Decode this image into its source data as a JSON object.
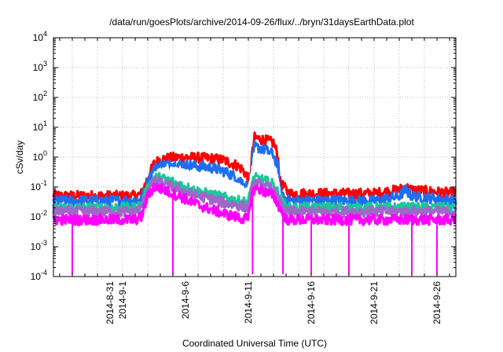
{
  "chart_data": {
    "type": "line",
    "title": "/data/run/goesPlots/archive/2014-09-26/flux/../bryn/31daysEarthData.plot",
    "xlabel": "Coordinated Universal Time (UTC)",
    "ylabel": "cSv/day",
    "yscale": "log",
    "ylim": [
      0.0001,
      10000
    ],
    "xlim": [
      "2014-08-26T12:00",
      "2014-09-27T12:00"
    ],
    "grid": true,
    "y_ticks": [
      {
        "value": 0.0001,
        "base": "10",
        "exp": "-4"
      },
      {
        "value": 0.001,
        "base": "10",
        "exp": "-3"
      },
      {
        "value": 0.01,
        "base": "10",
        "exp": "-2"
      },
      {
        "value": 0.1,
        "base": "10",
        "exp": "-1"
      },
      {
        "value": 1,
        "base": "10",
        "exp": "0"
      },
      {
        "value": 10,
        "base": "10",
        "exp": "1"
      },
      {
        "value": 100,
        "base": "10",
        "exp": "2"
      },
      {
        "value": 1000,
        "base": "10",
        "exp": "3"
      },
      {
        "value": 10000,
        "base": "10",
        "exp": "4"
      }
    ],
    "x_ticks": [
      {
        "date": "2014-08-31",
        "label": "2014-8-31"
      },
      {
        "date": "2014-09-01",
        "label": "2014-9-1"
      },
      {
        "date": "2014-09-06",
        "label": "2014-9-6"
      },
      {
        "date": "2014-09-11",
        "label": "2014-9-11"
      },
      {
        "date": "2014-09-16",
        "label": "2014-9-16"
      },
      {
        "date": "2014-09-21",
        "label": "2014-9-21"
      },
      {
        "date": "2014-09-26",
        "label": "2014-9-26"
      }
    ],
    "x_tick_marks": [
      "2014-08-27",
      "2014-08-28",
      "2014-08-29",
      "2014-08-30",
      "2014-08-31",
      "2014-09-01",
      "2014-09-02",
      "2014-09-03",
      "2014-09-04",
      "2014-09-05",
      "2014-09-06",
      "2014-09-07",
      "2014-09-08",
      "2014-09-09",
      "2014-09-10",
      "2014-09-11",
      "2014-09-12",
      "2014-09-13",
      "2014-09-14",
      "2014-09-15",
      "2014-09-16",
      "2014-09-17",
      "2014-09-18",
      "2014-09-19",
      "2014-09-20",
      "2014-09-21",
      "2014-09-22",
      "2014-09-23",
      "2014-09-24",
      "2014-09-25",
      "2014-09-26",
      "2014-09-27"
    ],
    "x_grid": [
      "2014-08-28",
      "2014-08-30",
      "2014-09-01",
      "2014-09-03",
      "2014-09-05",
      "2014-09-07",
      "2014-09-09",
      "2014-09-11",
      "2014-09-13",
      "2014-09-15",
      "2014-09-17",
      "2014-09-19",
      "2014-09-21",
      "2014-09-23",
      "2014-09-25",
      "2014-09-27"
    ],
    "series": [
      {
        "color": "#ff0000",
        "x": [
          "2014-08-26T12:00",
          "2014-08-29",
          "2014-09-02",
          "2014-09-02T12:00",
          "2014-09-03",
          "2014-09-03T12:00",
          "2014-09-04",
          "2014-09-05",
          "2014-09-06",
          "2014-09-07",
          "2014-09-08",
          "2014-09-09",
          "2014-09-10",
          "2014-09-10T12:00",
          "2014-09-11",
          "2014-09-11T04:00",
          "2014-09-11T06:00",
          "2014-09-11T12:00",
          "2014-09-12",
          "2014-09-12T12:00",
          "2014-09-13",
          "2014-09-13T08:00",
          "2014-09-13T12:00",
          "2014-09-14",
          "2014-09-14T06:00",
          "2014-09-15",
          "2014-09-18",
          "2014-09-21",
          "2014-09-22",
          "2014-09-23",
          "2014-09-23T12:00",
          "2014-09-24",
          "2014-09-27T12:00"
        ],
        "y": [
          0.05,
          0.05,
          0.05,
          0.06,
          0.2,
          0.6,
          0.85,
          0.95,
          1.0,
          0.95,
          0.9,
          0.8,
          0.55,
          0.4,
          0.2,
          0.12,
          0.8,
          4.5,
          4.0,
          3.5,
          3.0,
          1.2,
          0.15,
          0.08,
          0.06,
          0.06,
          0.06,
          0.06,
          0.07,
          0.08,
          0.1,
          0.08,
          0.06
        ]
      },
      {
        "color": "#1e6ff0",
        "x": [
          "2014-08-26T12:00",
          "2014-08-29",
          "2014-09-02",
          "2014-09-02T12:00",
          "2014-09-03",
          "2014-09-03T12:00",
          "2014-09-04",
          "2014-09-05",
          "2014-09-06",
          "2014-09-07",
          "2014-09-08",
          "2014-09-09",
          "2014-09-10",
          "2014-09-10T12:00",
          "2014-09-11",
          "2014-09-11T04:00",
          "2014-09-11T06:00",
          "2014-09-11T12:00",
          "2014-09-12",
          "2014-09-12T12:00",
          "2014-09-13",
          "2014-09-13T08:00",
          "2014-09-13T12:00",
          "2014-09-14",
          "2014-09-14T06:00",
          "2014-09-15",
          "2014-09-18",
          "2014-09-21",
          "2014-09-22",
          "2014-09-23",
          "2014-09-23T12:00",
          "2014-09-24",
          "2014-09-27T12:00"
        ],
        "y": [
          0.035,
          0.035,
          0.035,
          0.04,
          0.15,
          0.4,
          0.55,
          0.6,
          0.55,
          0.5,
          0.45,
          0.35,
          0.22,
          0.15,
          0.1,
          0.08,
          0.4,
          2.2,
          2.0,
          1.6,
          1.2,
          0.5,
          0.08,
          0.04,
          0.035,
          0.035,
          0.035,
          0.035,
          0.04,
          0.05,
          0.08,
          0.05,
          0.035
        ]
      },
      {
        "color": "#ffffff",
        "x": [
          "2014-09-03T12:00",
          "2014-09-04",
          "2014-09-05",
          "2014-09-06",
          "2014-09-07",
          "2014-09-08",
          "2014-09-09",
          "2014-09-10",
          "2014-09-10T12:00",
          "2014-09-11",
          "2014-09-11T12:00",
          "2014-09-12",
          "2014-09-13",
          "2014-09-13T08:00",
          "2014-09-13T12:00"
        ],
        "y": [
          0.2,
          0.3,
          0.3,
          0.25,
          0.2,
          0.16,
          0.12,
          0.09,
          0.07,
          0.06,
          1.0,
          0.7,
          0.4,
          0.15,
          0.04
        ]
      },
      {
        "color": "#19c89a",
        "x": [
          "2014-08-26T12:00",
          "2014-09-02",
          "2014-09-02T12:00",
          "2014-09-03",
          "2014-09-03T12:00",
          "2014-09-04",
          "2014-09-05",
          "2014-09-06",
          "2014-09-07",
          "2014-09-08",
          "2014-09-09",
          "2014-09-10",
          "2014-09-11",
          "2014-09-11T06:00",
          "2014-09-11T12:00",
          "2014-09-12",
          "2014-09-13",
          "2014-09-13T12:00",
          "2014-09-14",
          "2014-09-27T12:00"
        ],
        "y": [
          0.02,
          0.02,
          0.025,
          0.1,
          0.2,
          0.2,
          0.15,
          0.1,
          0.07,
          0.055,
          0.045,
          0.035,
          0.03,
          0.12,
          0.2,
          0.18,
          0.12,
          0.05,
          0.02,
          0.02
        ]
      },
      {
        "color": "#a066c8",
        "x": [
          "2014-08-26T12:00",
          "2014-09-02",
          "2014-09-02T12:00",
          "2014-09-03",
          "2014-09-03T12:00",
          "2014-09-04",
          "2014-09-05",
          "2014-09-06",
          "2014-09-07",
          "2014-09-08",
          "2014-09-09",
          "2014-09-10",
          "2014-09-11",
          "2014-09-11T06:00",
          "2014-09-11T12:00",
          "2014-09-12",
          "2014-09-13",
          "2014-09-13T12:00",
          "2014-09-14",
          "2014-09-27T12:00"
        ],
        "y": [
          0.015,
          0.015,
          0.02,
          0.08,
          0.15,
          0.14,
          0.1,
          0.07,
          0.05,
          0.04,
          0.03,
          0.025,
          0.02,
          0.08,
          0.13,
          0.12,
          0.08,
          0.03,
          0.015,
          0.015
        ]
      },
      {
        "color": "#ff00ff",
        "x": [
          "2014-08-26T12:00",
          "2014-09-02",
          "2014-09-02T12:00",
          "2014-09-03",
          "2014-09-03T12:00",
          "2014-09-04",
          "2014-09-05",
          "2014-09-06",
          "2014-09-07",
          "2014-09-08",
          "2014-09-09",
          "2014-09-10",
          "2014-09-11",
          "2014-09-11T06:00",
          "2014-09-11T12:00",
          "2014-09-12",
          "2014-09-13",
          "2014-09-13T12:00",
          "2014-09-14",
          "2014-09-27T12:00"
        ],
        "y": [
          0.008,
          0.008,
          0.01,
          0.05,
          0.1,
          0.09,
          0.06,
          0.04,
          0.025,
          0.018,
          0.013,
          0.01,
          0.008,
          0.05,
          0.09,
          0.08,
          0.05,
          0.02,
          0.008,
          0.008
        ]
      }
    ],
    "dips": [
      {
        "x": "2014-08-28",
        "y": 0.00012
      },
      {
        "x": "2014-09-05",
        "y": 0.00012
      },
      {
        "x": "2014-09-11T08:00",
        "y": 0.00012
      },
      {
        "x": "2014-09-13T18:00",
        "y": 0.00012
      },
      {
        "x": "2014-09-16",
        "y": 0.00012
      },
      {
        "x": "2014-09-19",
        "y": 0.00012
      },
      {
        "x": "2014-09-24",
        "y": 0.00012
      },
      {
        "x": "2014-09-26",
        "y": 0.00012
      }
    ]
  }
}
